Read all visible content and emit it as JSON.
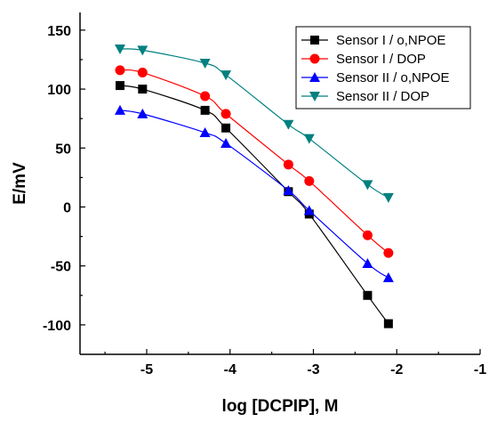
{
  "chart_data": {
    "type": "line",
    "xlabel": "log [DCPIP], M",
    "ylabel": "E/mV",
    "xlim": [
      -5.8,
      -1.0
    ],
    "ylim": [
      -125,
      165
    ],
    "x_ticks": [
      -5,
      -4,
      -3,
      -2,
      -1
    ],
    "x_tick_labels": [
      "-5",
      "-4",
      "-3",
      "-2",
      "-1"
    ],
    "y_ticks": [
      150,
      100,
      50,
      0,
      -50,
      -100
    ],
    "y_tick_labels": [
      "150",
      "100",
      "50",
      "0",
      "-50",
      "-100"
    ],
    "grid": false,
    "legend_position": "top-right",
    "series": [
      {
        "name": "Sensor I / o,NPOE",
        "marker": "square",
        "color": "#000000",
        "x": [
          -5.32,
          -5.05,
          -4.3,
          -4.05,
          -3.3,
          -3.05,
          -2.35,
          -2.1
        ],
        "y": [
          103,
          100,
          82,
          67,
          13,
          -6,
          -75,
          -99
        ]
      },
      {
        "name": "Sensor I / DOP",
        "marker": "circle",
        "color": "#ff0000",
        "x": [
          -5.32,
          -5.05,
          -4.3,
          -4.05,
          -3.3,
          -3.05,
          -2.35,
          -2.1
        ],
        "y": [
          116,
          114,
          94,
          79,
          36,
          22,
          -24,
          -39
        ]
      },
      {
        "name": "Sensor II / o,NPOE",
        "marker": "triangle-up",
        "color": "#0000ff",
        "x": [
          -5.32,
          -5.05,
          -4.3,
          -4.05,
          -3.3,
          -3.05,
          -2.35,
          -2.1
        ],
        "y": [
          82,
          79,
          63,
          54,
          14,
          -3,
          -48,
          -60
        ]
      },
      {
        "name": "Sensor II / DOP",
        "marker": "triangle-down",
        "color": "#008080",
        "x": [
          -5.32,
          -5.05,
          -4.3,
          -4.05,
          -3.3,
          -3.05,
          -2.35,
          -2.1
        ],
        "y": [
          134,
          133,
          122,
          112,
          70,
          58,
          19,
          8
        ]
      }
    ]
  }
}
